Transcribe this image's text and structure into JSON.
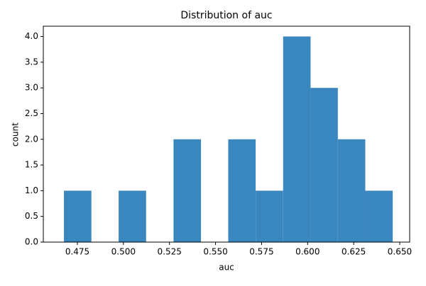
{
  "chart_data": {
    "type": "histogram",
    "title": "Distribution of auc",
    "xlabel": "auc",
    "ylabel": "count",
    "bins": [
      0.4677,
      0.4826,
      0.4974,
      0.5123,
      0.5272,
      0.5421,
      0.5569,
      0.5718,
      0.5867,
      0.6016,
      0.6164,
      0.6313,
      0.6462
    ],
    "counts": [
      1,
      0,
      1,
      0,
      2,
      0,
      2,
      1,
      4,
      3,
      2,
      1
    ],
    "color": "#3a86bf",
    "xlim": [
      0.4565,
      0.6554
    ],
    "xticks": [
      0.475,
      {
        "value": 0.5,
        "label": "0.500"
      },
      0.525,
      {
        "value": 0.55,
        "label": "0.550"
      },
      0.575,
      {
        "value": 0.6,
        "label": "0.600"
      },
      0.625,
      {
        "value": 0.65,
        "label": "0.650"
      }
    ],
    "ylim": [
      0,
      4.2
    ],
    "yticks": [
      {
        "value": 0,
        "label": "0.0"
      },
      0.5,
      {
        "value": 1,
        "label": "1.0"
      },
      1.5,
      {
        "value": 2,
        "label": "2.0"
      },
      2.5,
      {
        "value": 3,
        "label": "3.0"
      },
      3.5,
      {
        "value": 4,
        "label": "4.0"
      }
    ]
  }
}
